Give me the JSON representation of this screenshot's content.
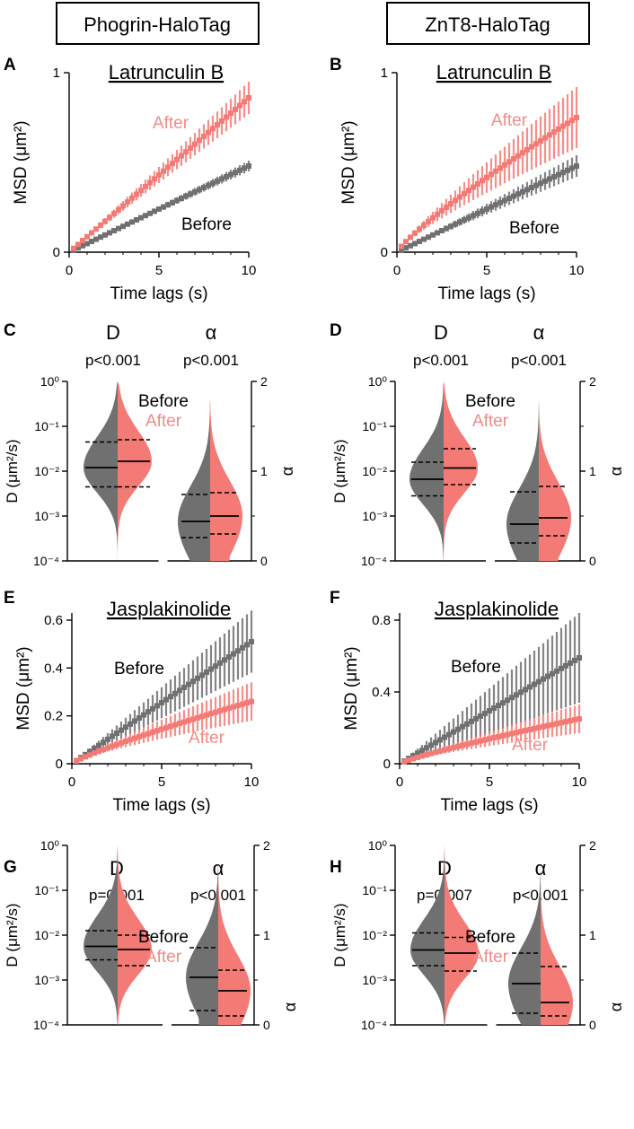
{
  "colors": {
    "before": "#707070",
    "after": "#f47a76",
    "after_label": "#f28b85",
    "axis": "#000000"
  },
  "column_headers": [
    "Phogrin-HaloTag",
    "ZnT8-HaloTag"
  ],
  "chart_data": [
    {
      "panel": "A",
      "type": "line",
      "title": "Latrunculin B",
      "xlabel": "Time lags (s)",
      "ylabel": "MSD (μm²)",
      "xlim": [
        0,
        10
      ],
      "ylim": [
        0,
        1
      ],
      "xticks": [
        "0",
        "5",
        "10"
      ],
      "yticks": [
        "0",
        "1"
      ],
      "series_labels": {
        "before": "Before",
        "after": "After"
      },
      "series": [
        {
          "name": "Before",
          "y_end": 0.48,
          "err_end": 0.03
        },
        {
          "name": "After",
          "y_end": 0.86,
          "err_end": 0.09
        }
      ]
    },
    {
      "panel": "B",
      "type": "line",
      "title": "Latrunculin B",
      "xlabel": "Time lags (s)",
      "ylabel": "MSD (μm²)",
      "xlim": [
        0,
        10
      ],
      "ylim": [
        0,
        1
      ],
      "xticks": [
        "0",
        "5",
        "10"
      ],
      "yticks": [
        "0",
        "1"
      ],
      "series_labels": {
        "before": "Before",
        "after": "After"
      },
      "series": [
        {
          "name": "Before",
          "y_end": 0.48,
          "err_end": 0.06
        },
        {
          "name": "After",
          "y_end": 0.75,
          "err_end": 0.17
        }
      ]
    },
    {
      "panel": "C",
      "type": "violin",
      "stat_labels": [
        "D",
        "α"
      ],
      "pvalues": [
        "p<0.001",
        "p<0.001"
      ],
      "ylabel_left": "D (μm²/s)",
      "ylabel_right": "α",
      "left_ticks": [
        "10⁻⁴",
        "10⁻³",
        "10⁻²",
        "10⁻¹",
        "10⁰"
      ],
      "right_ticks": [
        "0",
        "1",
        "2"
      ],
      "series_labels": {
        "before": "Before",
        "after": "After"
      },
      "D_log10": {
        "before": {
          "median": -1.92,
          "q1": -2.35,
          "q3": -1.35
        },
        "after": {
          "median": -1.78,
          "q1": -2.35,
          "q3": -1.3
        }
      },
      "alpha": {
        "before": {
          "median": 0.44,
          "q1": 0.26,
          "q3": 0.74
        },
        "after": {
          "median": 0.5,
          "q1": 0.3,
          "q3": 0.76
        }
      }
    },
    {
      "panel": "D",
      "type": "violin",
      "stat_labels": [
        "D",
        "α"
      ],
      "pvalues": [
        "p<0.001",
        "p<0.001"
      ],
      "ylabel_left": "D (μm²/s)",
      "ylabel_right": "α",
      "left_ticks": [
        "10⁻⁴",
        "10⁻³",
        "10⁻²",
        "10⁻¹",
        "10⁰"
      ],
      "right_ticks": [
        "0",
        "1",
        "2"
      ],
      "series_labels": {
        "before": "Before",
        "after": "After"
      },
      "D_log10": {
        "before": {
          "median": -2.18,
          "q1": -2.55,
          "q3": -1.8
        },
        "after": {
          "median": -1.93,
          "q1": -2.3,
          "q3": -1.5
        }
      },
      "alpha": {
        "before": {
          "median": 0.41,
          "q1": 0.2,
          "q3": 0.77
        },
        "after": {
          "median": 0.48,
          "q1": 0.28,
          "q3": 0.83
        }
      }
    },
    {
      "panel": "E",
      "type": "line",
      "title": "Jasplakinolide",
      "xlabel": "Time lags (s)",
      "ylabel": "MSD (μm²)",
      "xlim": [
        0,
        10
      ],
      "ylim": [
        0,
        0.63
      ],
      "xticks": [
        "0",
        "5",
        "10"
      ],
      "yticks": [
        "0",
        "0.2",
        "0.4",
        "0.6"
      ],
      "series_labels": {
        "before": "Before",
        "after": "After"
      },
      "series": [
        {
          "name": "Before",
          "y_end": 0.51,
          "err_end": 0.13
        },
        {
          "name": "After",
          "y_end": 0.26,
          "err_end": 0.08
        }
      ]
    },
    {
      "panel": "F",
      "type": "line",
      "title": "Jasplakinolide",
      "xlabel": "Time lags (s)",
      "ylabel": "MSD (μm²)",
      "xlim": [
        0,
        10
      ],
      "ylim": [
        0,
        0.84
      ],
      "xticks": [
        "0",
        "5",
        "10"
      ],
      "yticks": [
        "0",
        "0.4",
        "0.8"
      ],
      "series_labels": {
        "before": "Before",
        "after": "After"
      },
      "series": [
        {
          "name": "Before",
          "y_end": 0.59,
          "err_end": 0.25
        },
        {
          "name": "After",
          "y_end": 0.25,
          "err_end": 0.08
        }
      ]
    },
    {
      "panel": "G",
      "type": "violin",
      "stat_labels": [
        "D",
        "α"
      ],
      "pvalues": [
        "p=0.001",
        "p<0.001"
      ],
      "ylabel_left": "D (μm²/s)",
      "ylabel_right": "α",
      "left_ticks": [
        "10⁻⁴",
        "10⁻³",
        "10⁻²",
        "10⁻¹",
        "10⁰"
      ],
      "right_ticks": [
        "0",
        "1",
        "2"
      ],
      "series_labels": {
        "before": "Before",
        "after": "After"
      },
      "D_log10": {
        "before": {
          "median": -2.25,
          "q1": -2.55,
          "q3": -1.9
        },
        "after": {
          "median": -2.32,
          "q1": -2.68,
          "q3": -2.0
        }
      },
      "alpha": {
        "before": {
          "median": 0.53,
          "q1": 0.16,
          "q3": 0.86
        },
        "after": {
          "median": 0.38,
          "q1": 0.1,
          "q3": 0.61
        }
      }
    },
    {
      "panel": "H",
      "type": "violin",
      "stat_labels": [
        "D",
        "α"
      ],
      "pvalues": [
        "p=0.007",
        "p<0.001"
      ],
      "ylabel_left": "D (μm²/s)",
      "ylabel_right": "α",
      "left_ticks": [
        "10⁻⁴",
        "10⁻³",
        "10⁻²",
        "10⁻¹",
        "10⁰"
      ],
      "right_ticks": [
        "0",
        "1",
        "2"
      ],
      "series_labels": {
        "before": "Before",
        "after": "After"
      },
      "D_log10": {
        "before": {
          "median": -2.33,
          "q1": -2.68,
          "q3": -1.95
        },
        "after": {
          "median": -2.4,
          "q1": -2.8,
          "q3": -2.05
        }
      },
      "alpha": {
        "before": {
          "median": 0.46,
          "q1": 0.13,
          "q3": 0.8
        },
        "after": {
          "median": 0.25,
          "q1": 0.1,
          "q3": 0.65
        }
      }
    }
  ]
}
